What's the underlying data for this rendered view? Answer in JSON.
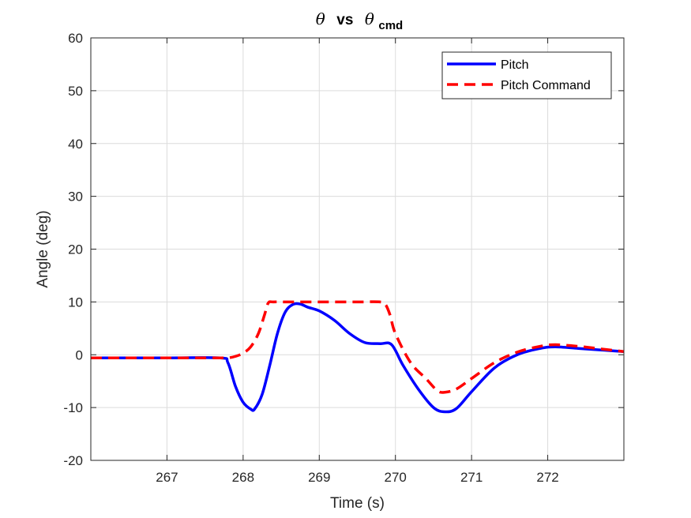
{
  "chart_data": {
    "type": "line",
    "title": {
      "symbol_left": "θ",
      "middle": "vs",
      "symbol_right": "θ",
      "subscript": "cmd"
    },
    "xlabel": "Time (s)",
    "ylabel": "Angle (deg)",
    "xlim": [
      266.0,
      273.0
    ],
    "ylim": [
      -20,
      60
    ],
    "xticks": [
      267,
      268,
      269,
      270,
      271,
      272
    ],
    "yticks": [
      -20,
      -10,
      0,
      10,
      20,
      30,
      40,
      50,
      60
    ],
    "grid": true,
    "legend_position": "top-right",
    "series": [
      {
        "name": "Pitch",
        "color": "#0000ff",
        "style": "solid",
        "x": [
          266.0,
          267.0,
          267.7,
          267.8,
          267.9,
          268.0,
          268.1,
          268.15,
          268.25,
          268.35,
          268.45,
          268.55,
          268.65,
          268.75,
          268.85,
          269.0,
          269.2,
          269.4,
          269.6,
          269.8,
          269.95,
          270.1,
          270.3,
          270.5,
          270.65,
          270.8,
          271.0,
          271.3,
          271.6,
          271.9,
          272.1,
          272.4,
          272.7,
          273.0
        ],
        "y": [
          -0.6,
          -0.6,
          -0.6,
          -1.5,
          -6.0,
          -9.0,
          -10.3,
          -10.3,
          -7.5,
          -2.0,
          4.0,
          8.0,
          9.5,
          9.6,
          9.0,
          8.3,
          6.5,
          4.0,
          2.3,
          2.1,
          1.9,
          -2.0,
          -6.5,
          -10.0,
          -10.8,
          -10.2,
          -7.0,
          -2.5,
          0.0,
          1.2,
          1.5,
          1.2,
          0.9,
          0.6
        ]
      },
      {
        "name": "Pitch Command",
        "color": "#ff0000",
        "style": "dashed",
        "x": [
          266.0,
          267.0,
          267.7,
          267.8,
          267.9,
          268.0,
          268.1,
          268.2,
          268.28,
          268.33,
          268.4,
          268.6,
          269.0,
          269.5,
          269.8,
          269.87,
          269.93,
          270.0,
          270.2,
          270.4,
          270.55,
          270.65,
          270.8,
          271.0,
          271.3,
          271.6,
          271.9,
          272.1,
          272.4,
          272.7,
          273.0
        ],
        "y": [
          -0.6,
          -0.6,
          -0.6,
          -0.6,
          -0.3,
          0.3,
          1.5,
          4.0,
          7.5,
          9.8,
          10.0,
          10.0,
          10.0,
          10.0,
          10.0,
          9.5,
          7.5,
          4.0,
          -1.5,
          -4.5,
          -6.8,
          -7.1,
          -6.5,
          -4.5,
          -1.5,
          0.5,
          1.6,
          1.9,
          1.6,
          1.1,
          0.6
        ]
      }
    ]
  }
}
